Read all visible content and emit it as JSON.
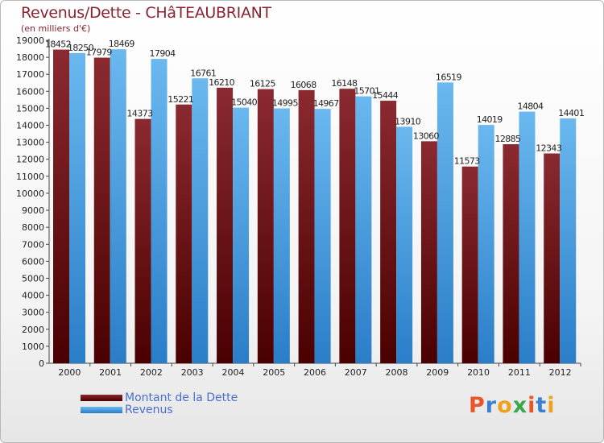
{
  "title": "Revenus/Dette - CHâTEAUBRIANT",
  "subtitle": "(en milliers d'€)",
  "logo": {
    "text": "Proxiti",
    "letters": [
      "P",
      "r",
      "o",
      "x",
      "i",
      "t",
      "i"
    ],
    "colors": [
      "#e8552a",
      "#3a7fd5",
      "#f0a020",
      "#3aa84a",
      "#e8552a",
      "#3a7fd5",
      "#f0a020"
    ]
  },
  "colors": {
    "debt_top": "#8a2a30",
    "debt_bottom": "#4a0000",
    "rev_top": "#6ab8ef",
    "rev_bottom": "#2a7ec8",
    "text": "#222222",
    "grid": "#bbbbbb"
  },
  "chart_data": {
    "type": "bar",
    "categories": [
      "2000",
      "2001",
      "2002",
      "2003",
      "2004",
      "2005",
      "2006",
      "2007",
      "2008",
      "2009",
      "2010",
      "2011",
      "2012"
    ],
    "series": [
      {
        "name": "Montant de la Dette",
        "values": [
          18452,
          17979,
          14373,
          15221,
          16210,
          16125,
          16068,
          16148,
          15444,
          13060,
          11573,
          12885,
          12343
        ],
        "labels": [
          "18452",
          "17979",
          "14373",
          "15221",
          "16210",
          "16125",
          "16068",
          "16148",
          "15444",
          "13060",
          "11573",
          "12885",
          "12343"
        ]
      },
      {
        "name": "Revenus",
        "values": [
          18250,
          18469,
          17904,
          16761,
          15040,
          14995,
          14967,
          15701,
          13910,
          16519,
          14019,
          14804,
          14401
        ],
        "labels": [
          "18250",
          "18469",
          "17904",
          "16761",
          "15040",
          "14995",
          "14967",
          "15701",
          "13910",
          "16519",
          "14019",
          "14804",
          "14401"
        ]
      }
    ],
    "ylim": [
      0,
      19000
    ],
    "yticks": [
      0,
      1000,
      2000,
      3000,
      4000,
      5000,
      6000,
      7000,
      8000,
      9000,
      10000,
      11000,
      12000,
      13000,
      14000,
      15000,
      16000,
      17000,
      18000,
      19000
    ],
    "grid": false,
    "legend": "bottom-left"
  }
}
